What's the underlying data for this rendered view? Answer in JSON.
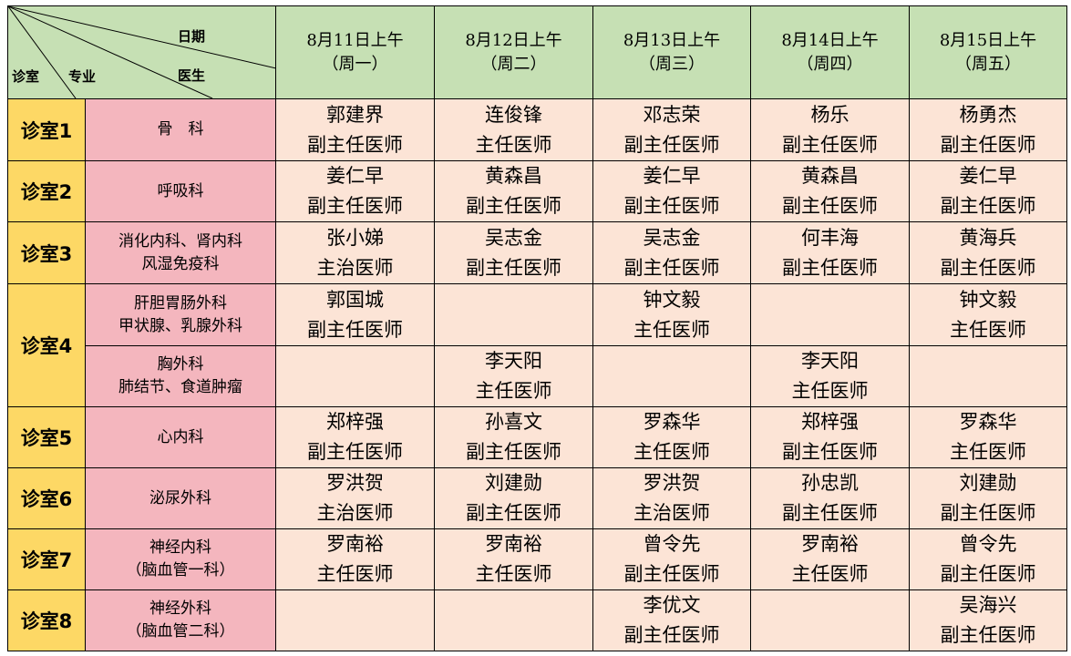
{
  "corner": {
    "date_label": "日期",
    "doctor_label": "医生",
    "room_label": "诊室",
    "specialty_label": "专业"
  },
  "colors": {
    "header": "#c6e0b4",
    "room": "#fdd865",
    "department": "#f4b6be",
    "cell": "#fce4d6"
  },
  "days": [
    {
      "date": "8月11日上午",
      "weekday": "（周一）"
    },
    {
      "date": "8月12日上午",
      "weekday": "（周二）"
    },
    {
      "date": "8月13日上午",
      "weekday": "（周三）"
    },
    {
      "date": "8月14日上午",
      "weekday": "（周四）"
    },
    {
      "date": "8月15日上午",
      "weekday": "（周五）"
    }
  ],
  "rows": [
    {
      "room": "诊室1",
      "room_span": 1,
      "dept": [
        "骨　科"
      ],
      "doctors": [
        [
          "郭建界",
          "副主任医师"
        ],
        [
          "连俊锋",
          "主任医师"
        ],
        [
          "邓志荣",
          "副主任医师"
        ],
        [
          "杨乐",
          "副主任医师"
        ],
        [
          "杨勇杰",
          "副主任医师"
        ]
      ]
    },
    {
      "room": "诊室2",
      "room_span": 1,
      "dept": [
        "呼吸科"
      ],
      "doctors": [
        [
          "姜仁早",
          "副主任医师"
        ],
        [
          "黄森昌",
          "副主任医师"
        ],
        [
          "姜仁早",
          "副主任医师"
        ],
        [
          "黄森昌",
          "副主任医师"
        ],
        [
          "姜仁早",
          "副主任医师"
        ]
      ]
    },
    {
      "room": "诊室3",
      "room_span": 1,
      "dept": [
        "消化内科、肾内科",
        "风湿免疫科"
      ],
      "doctors": [
        [
          "张小娣",
          "主治医师"
        ],
        [
          "吴志金",
          "副主任医师"
        ],
        [
          "吴志金",
          "副主任医师"
        ],
        [
          "何丰海",
          "副主任医师"
        ],
        [
          "黄海兵",
          "副主任医师"
        ]
      ]
    },
    {
      "room": "诊室4",
      "room_span": 2,
      "dept": [
        "肝胆胃肠外科",
        "甲状腺、乳腺外科"
      ],
      "doctors": [
        [
          "郭国城",
          "副主任医师"
        ],
        [],
        [
          "钟文毅",
          "主任医师"
        ],
        [],
        [
          "钟文毅",
          "主任医师"
        ]
      ]
    },
    {
      "room": "",
      "room_span": 0,
      "dept": [
        "胸外科",
        "肺结节、食道肿瘤"
      ],
      "doctors": [
        [],
        [
          "李天阳",
          "主任医师"
        ],
        [],
        [
          "李天阳",
          "主任医师"
        ],
        []
      ]
    },
    {
      "room": "诊室5",
      "room_span": 1,
      "dept": [
        "心内科"
      ],
      "doctors": [
        [
          "郑梓强",
          "副主任医师"
        ],
        [
          "孙喜文",
          "副主任医师"
        ],
        [
          "罗森华",
          "主任医师"
        ],
        [
          "郑梓强",
          "副主任医师"
        ],
        [
          "罗森华",
          "主任医师"
        ]
      ]
    },
    {
      "room": "诊室6",
      "room_span": 1,
      "dept": [
        "泌尿外科"
      ],
      "doctors": [
        [
          "罗洪贺",
          "主治医师"
        ],
        [
          "刘建勋",
          "副主任医师"
        ],
        [
          "罗洪贺",
          "主治医师"
        ],
        [
          "孙忠凯",
          "副主任医师"
        ],
        [
          "刘建勋",
          "副主任医师"
        ]
      ]
    },
    {
      "room": "诊室7",
      "room_span": 1,
      "dept": [
        "神经内科",
        "（脑血管一科）"
      ],
      "doctors": [
        [
          "罗南裕",
          "主任医师"
        ],
        [
          "罗南裕",
          "主任医师"
        ],
        [
          "曾令先",
          "副主任医师"
        ],
        [
          "罗南裕",
          "主任医师"
        ],
        [
          "曾令先",
          "副主任医师"
        ]
      ]
    },
    {
      "room": "诊室8",
      "room_span": 1,
      "dept": [
        "神经外科",
        "（脑血管二科）"
      ],
      "doctors": [
        [],
        [],
        [
          "李优文",
          "副主任医师"
        ],
        [],
        [
          "吴海兴",
          "副主任医师"
        ]
      ]
    }
  ]
}
